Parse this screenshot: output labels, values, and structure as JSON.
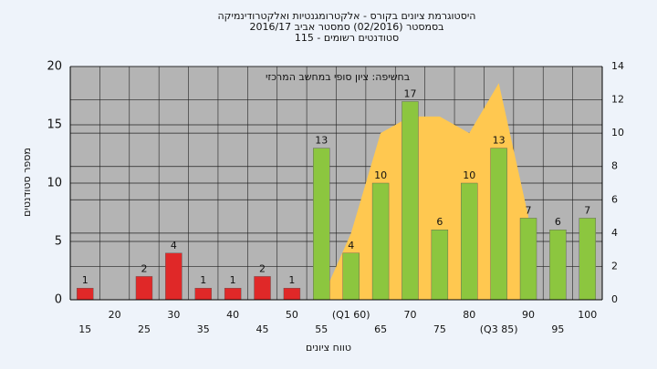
{
  "chart_data": {
    "type": "bar",
    "title": [
      "היסטוגרמת ציונים בקורס - אלקטרומגנטיות ואלקטרודינמיקה",
      "בסמסטר  (02/2016)  סמסטר אביב 2016/17",
      "סטודנטים רשומים - 115"
    ],
    "annotation": "בחשיפה: ציון סופי במחשב המרכזי",
    "y_label": "מספר סטודנטים",
    "x_label": "טווח ציונים",
    "categories": [
      "15",
      "20",
      "25",
      "30",
      "35",
      "40",
      "45",
      "50",
      "55",
      "(Q1 60)",
      "65",
      "70",
      "75",
      "80",
      "(Q3 85)",
      "90",
      "95",
      "100"
    ],
    "series": [
      {
        "type": "bar",
        "values": [
          1,
          null,
          2,
          4,
          1,
          1,
          2,
          1,
          13,
          4,
          10,
          17,
          6,
          10,
          13,
          7,
          6,
          7
        ],
        "colors": [
          "#e02828",
          "#e02828",
          "#e02828",
          "#e02828",
          "#e02828",
          "#e02828",
          "#e02828",
          "#e02828",
          "#8cc63f",
          "#8cc63f",
          "#8cc63f",
          "#8cc63f",
          "#8cc63f",
          "#8cc63f",
          "#8cc63f",
          "#8cc63f",
          "#8cc63f",
          "#8cc63f"
        ]
      },
      {
        "type": "area",
        "axis": "y2",
        "color": "#ffc850",
        "values": [
          null,
          null,
          null,
          null,
          null,
          null,
          null,
          null,
          0,
          4,
          10,
          11,
          11,
          10,
          13,
          5,
          null,
          null
        ]
      }
    ],
    "ylim": [
      0,
      20
    ],
    "yticks": [
      0,
      5,
      10,
      15,
      20
    ],
    "y2lim": [
      0,
      14
    ],
    "y2ticks": [
      0,
      2,
      4,
      6,
      8,
      10,
      12,
      14
    ],
    "grid": true
  }
}
